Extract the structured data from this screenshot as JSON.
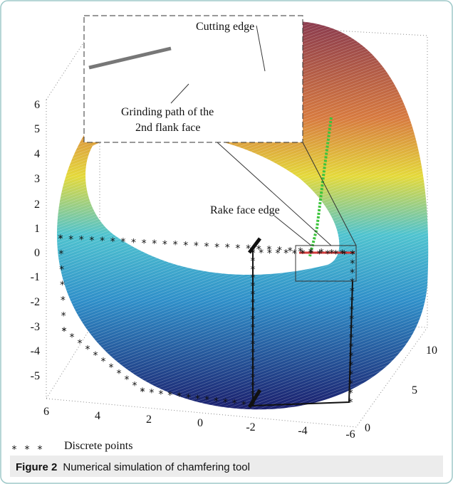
{
  "figure": {
    "label": "Figure 2",
    "caption": "Numerical simulation of chamfering tool"
  },
  "plot": {
    "z_ticks": [
      "6",
      "5",
      "4",
      "3",
      "2",
      "1",
      "0",
      "-1",
      "-2",
      "-3",
      "-4",
      "-5"
    ],
    "x_ticks": [
      "6",
      "4",
      "2",
      "0",
      "-2",
      "-4",
      "-6"
    ],
    "y_ticks": [
      "0",
      "5",
      "10"
    ],
    "annotations": {
      "cutting_edge": "Cutting edge",
      "grinding_path_1": "Grinding path of the",
      "grinding_path_2": "2nd flank face",
      "rake_face_edge": "Rake face edge"
    },
    "legend": "Discrete points"
  }
}
